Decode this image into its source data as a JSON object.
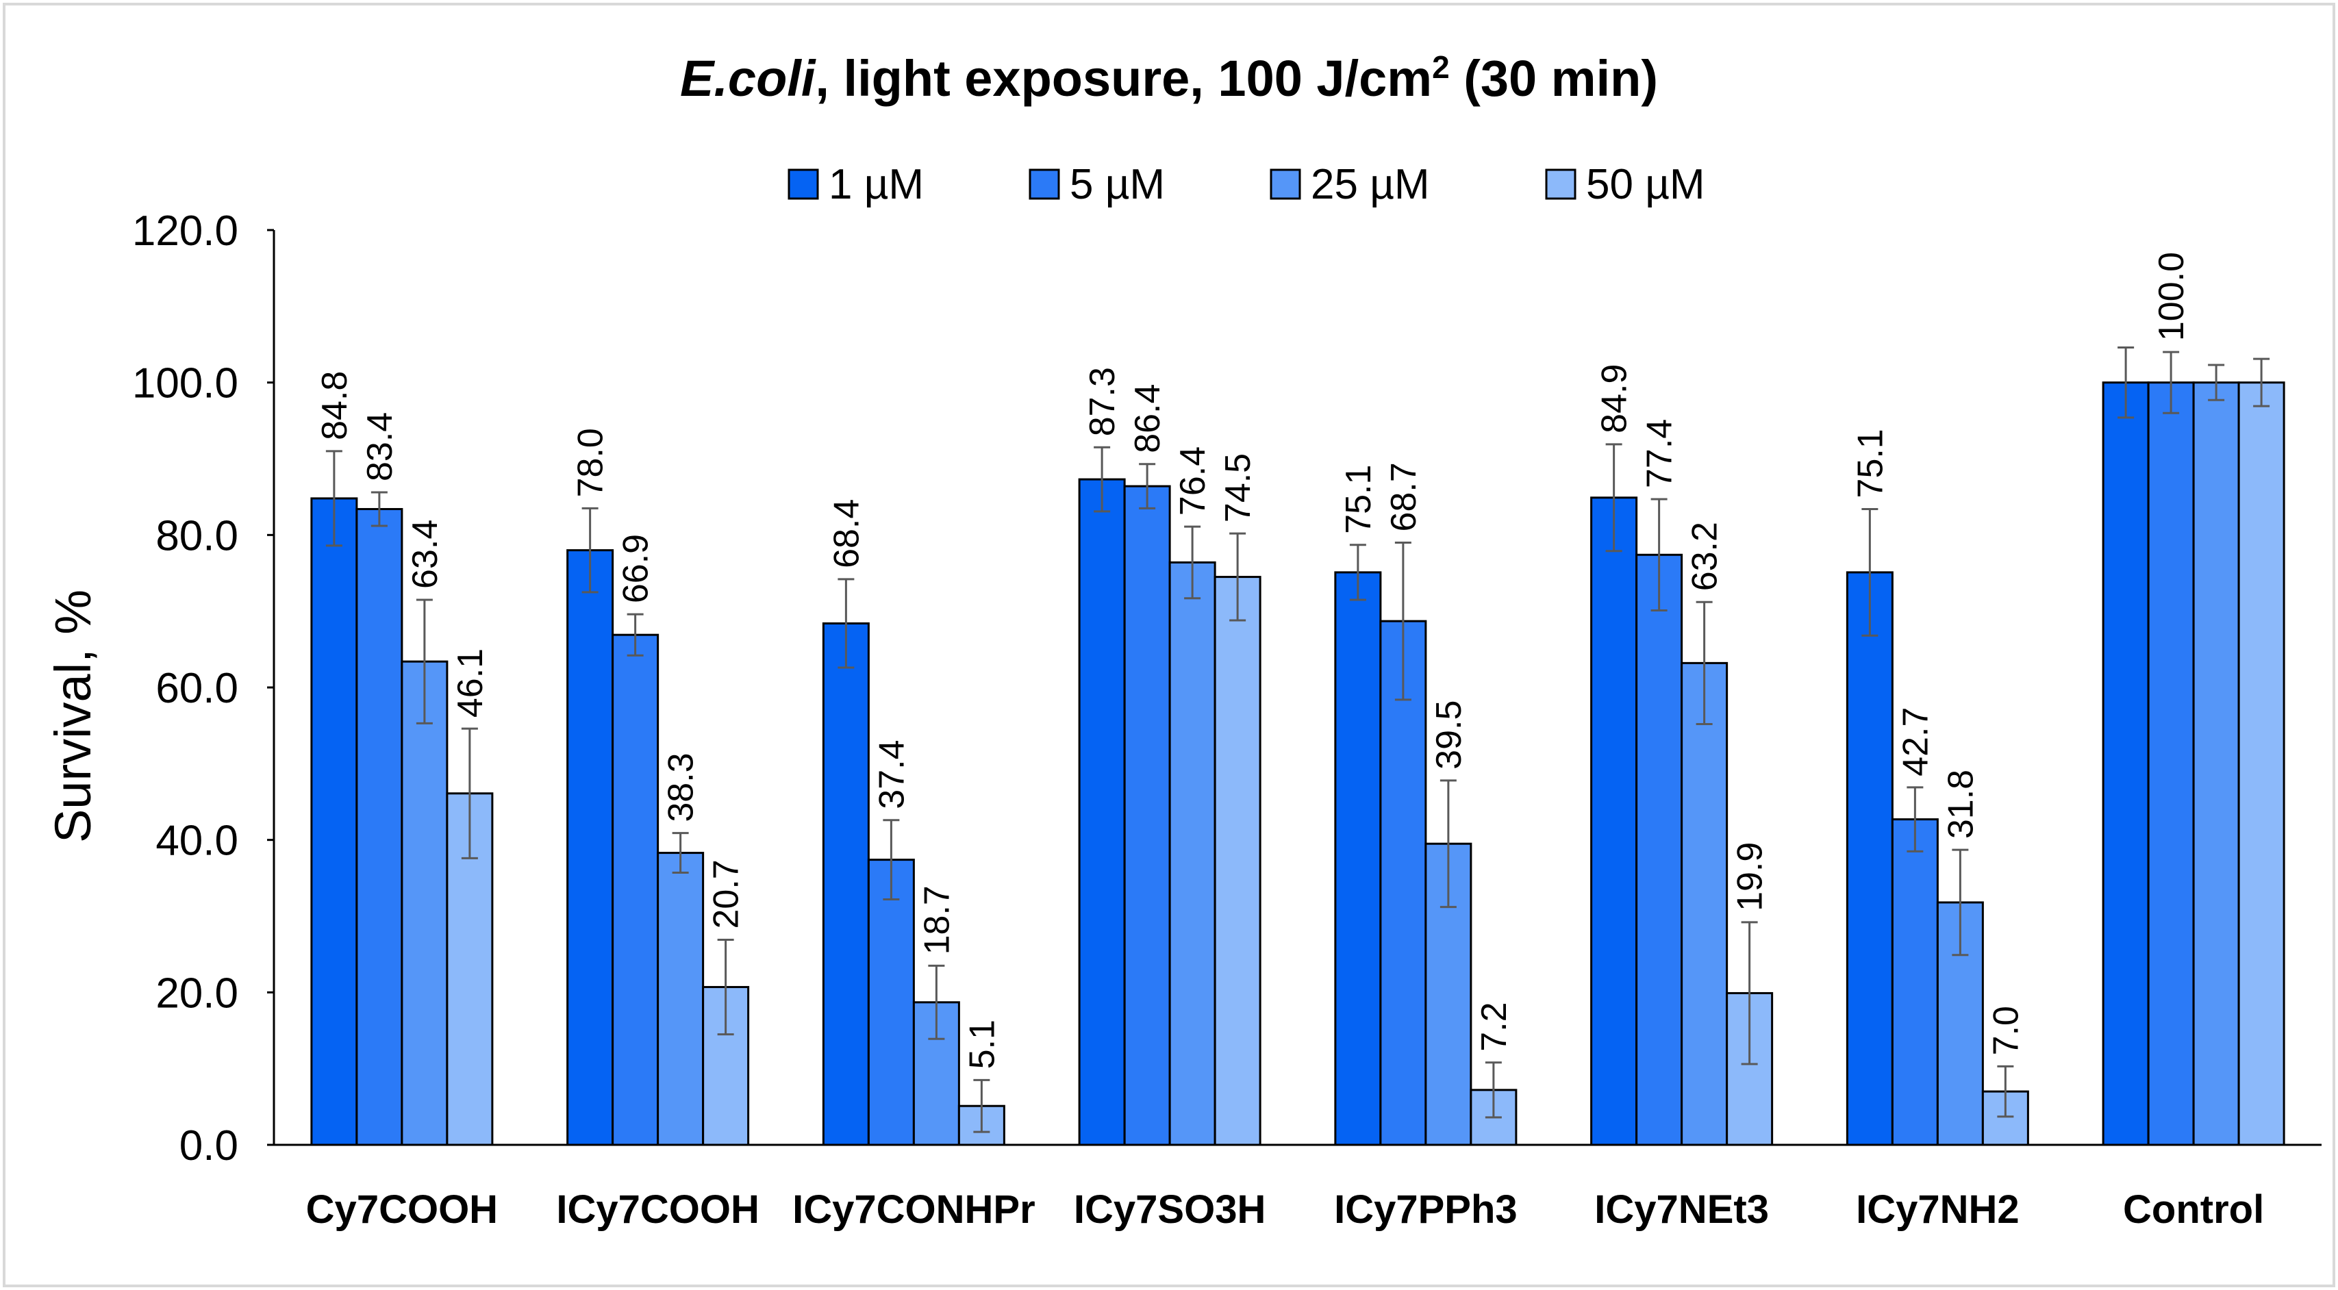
{
  "chart_data": {
    "type": "bar",
    "title": {
      "italic_part": "E.coli",
      "rest": ", light exposure, 100 J/cm",
      "superscript": "2",
      "tail": " (30  min)"
    },
    "xlabel": "",
    "ylabel": "Survival, %",
    "ylim": [
      0,
      120
    ],
    "yticks": [
      "0.0",
      "20.0",
      "40.0",
      "60.0",
      "80.0",
      "100.0",
      "120.0"
    ],
    "grid": false,
    "legend_position": "top-center",
    "categories": [
      "Cy7COOH",
      "ICy7COOH",
      "ICy7CONHPr",
      "ICy7SO3H",
      "ICy7PPh3",
      "ICy7NEt3",
      "ICy7NH2",
      "Control"
    ],
    "series": [
      {
        "name": "1 µM",
        "color": "#0563f3",
        "values": [
          84.8,
          78.0,
          68.4,
          87.3,
          75.1,
          84.9,
          75.1,
          100.0
        ],
        "errors": [
          6.2,
          5.5,
          5.8,
          4.2,
          3.6,
          7.0,
          8.3,
          4.6
        ],
        "labels": [
          "84.8",
          "78.0",
          "68.4",
          "87.3",
          "75.1",
          "84.9",
          "75.1",
          ""
        ]
      },
      {
        "name": "5 µM",
        "color": "#2b7af7",
        "values": [
          83.4,
          66.9,
          37.4,
          86.4,
          68.7,
          77.4,
          42.7,
          100.0
        ],
        "errors": [
          2.2,
          2.7,
          5.2,
          2.9,
          10.3,
          7.3,
          4.2,
          4.0
        ],
        "labels": [
          "83.4",
          "66.9",
          "37.4",
          "86.4",
          "68.7",
          "77.4",
          "42.7",
          "100.0"
        ]
      },
      {
        "name": "25 µM",
        "color": "#5596f8",
        "values": [
          63.4,
          38.3,
          18.7,
          76.4,
          39.5,
          63.2,
          31.8,
          100.0
        ],
        "errors": [
          8.1,
          2.6,
          4.8,
          4.7,
          8.3,
          8.0,
          6.9,
          2.3
        ],
        "labels": [
          "63.4",
          "38.3",
          "18.7",
          "76.4",
          "39.5",
          "63.2",
          "31.8",
          ""
        ]
      },
      {
        "name": "50 µM",
        "color": "#8cb9fa",
        "values": [
          46.1,
          20.7,
          5.1,
          74.5,
          7.2,
          19.9,
          7.0,
          100.0
        ],
        "errors": [
          8.5,
          6.2,
          3.4,
          5.7,
          3.6,
          9.3,
          3.3,
          3.1
        ],
        "labels": [
          "46.1",
          "20.7",
          "5.1",
          "74.5",
          "7.2",
          "19.9",
          "7.0",
          ""
        ]
      }
    ]
  }
}
